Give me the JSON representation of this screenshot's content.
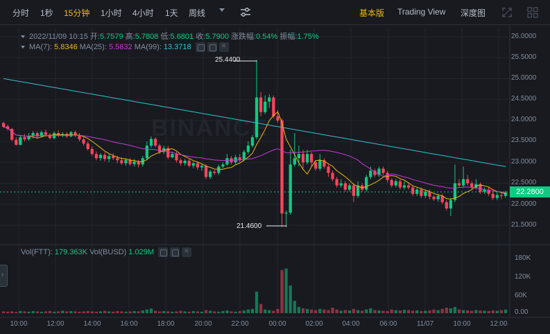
{
  "toolbar": {
    "timeframes": [
      "分时",
      "1秒",
      "15分钟",
      "1小时",
      "4小时",
      "1天",
      "周线"
    ],
    "active_timeframe_index": 2,
    "views": [
      "基本版",
      "Trading View",
      "深度图"
    ],
    "active_view_index": 0
  },
  "ohlc": {
    "datetime": "2022/11/09 10:15",
    "open_label": "开:",
    "open": "5.7579",
    "high_label": "高:",
    "high": "5.7808",
    "low_label": "低:",
    "low": "5.6801",
    "close_label": "收:",
    "close": "5.7900",
    "change_label": "涨跌幅:",
    "change": "0.54%",
    "amplitude_label": "振幅:",
    "amplitude": "1.75%"
  },
  "ma": {
    "ma7_label": "MA(7):",
    "ma7": "5.8346",
    "ma25_label": "MA(25):",
    "ma25": "5.5832",
    "ma99_label": "MA(99):",
    "ma99": "13.3718"
  },
  "vol": {
    "ftt_label": "Vol(FTT):",
    "ftt": "179.363K",
    "busd_label": "Vol(BUSD)",
    "busd": "1.029M"
  },
  "price_axis": [
    "26.0000",
    "25.5000",
    "25.0000",
    "24.5000",
    "24.0000",
    "23.5000",
    "23.0000",
    "22.5000",
    "22.0000",
    "21.5000"
  ],
  "current_price": "22.2800",
  "high_marker": "25.4400",
  "low_marker": "21.4600",
  "volume_axis": [
    "180K",
    "120K",
    "60K",
    "0.00"
  ],
  "time_axis": [
    "10:00",
    "12:00",
    "14:00",
    "16:00",
    "18:00",
    "20:00",
    "22:00",
    "00:00",
    "02:00",
    "04:00",
    "06:00",
    "11/07",
    "10:00",
    "12:00"
  ],
  "watermark": "BINANCE",
  "colors": {
    "up": "#0ecb81",
    "down": "#f6465d",
    "ma7": "#f0b90b",
    "ma25": "#c73bd6",
    "ma99": "#33c2c9",
    "accent": "#f0b90b"
  },
  "chart_data": {
    "type": "candlestick",
    "ylim": [
      21.3,
      26.2
    ],
    "volume_ylim": [
      0,
      200
    ],
    "candles": [
      [
        23.94,
        23.85,
        23.97,
        23.82
      ],
      [
        23.86,
        23.8,
        23.9,
        23.76
      ],
      [
        23.8,
        23.54,
        23.82,
        23.5
      ],
      [
        23.54,
        23.42,
        23.6,
        23.4
      ],
      [
        23.42,
        23.6,
        23.65,
        23.4
      ],
      [
        23.6,
        23.55,
        23.68,
        23.5
      ],
      [
        23.55,
        23.63,
        23.7,
        23.52
      ],
      [
        23.63,
        23.7,
        23.75,
        23.58
      ],
      [
        23.7,
        23.62,
        23.74,
        23.58
      ],
      [
        23.62,
        23.72,
        23.76,
        23.6
      ],
      [
        23.72,
        23.66,
        23.78,
        23.62
      ],
      [
        23.66,
        23.58,
        23.7,
        23.55
      ],
      [
        23.58,
        23.7,
        23.74,
        23.55
      ],
      [
        23.7,
        23.64,
        23.76,
        23.6
      ],
      [
        23.64,
        23.68,
        23.72,
        23.6
      ],
      [
        23.68,
        23.62,
        23.72,
        23.58
      ],
      [
        23.62,
        23.72,
        23.75,
        23.6
      ],
      [
        23.72,
        23.65,
        23.76,
        23.6
      ],
      [
        23.65,
        23.55,
        23.7,
        23.5
      ],
      [
        23.55,
        23.45,
        23.6,
        23.4
      ],
      [
        23.45,
        23.32,
        23.5,
        23.28
      ],
      [
        23.32,
        23.2,
        23.38,
        23.15
      ],
      [
        23.2,
        23.1,
        23.26,
        23.05
      ],
      [
        23.1,
        23.18,
        23.22,
        23.04
      ],
      [
        23.18,
        23.08,
        23.24,
        23.02
      ],
      [
        23.08,
        23.15,
        23.2,
        23.0
      ],
      [
        23.15,
        23.1,
        23.22,
        23.06
      ],
      [
        23.1,
        23.05,
        23.16,
        22.98
      ],
      [
        23.05,
        22.98,
        23.12,
        22.94
      ],
      [
        22.98,
        23.06,
        23.1,
        22.92
      ],
      [
        23.06,
        22.96,
        23.1,
        22.92
      ],
      [
        22.96,
        23.02,
        23.08,
        22.9
      ],
      [
        23.02,
        22.95,
        23.06,
        22.88
      ],
      [
        22.95,
        23.1,
        23.15,
        22.9
      ],
      [
        23.1,
        23.4,
        23.5,
        23.05
      ],
      [
        23.4,
        23.56,
        23.62,
        23.35
      ],
      [
        23.56,
        23.4,
        23.6,
        23.36
      ],
      [
        23.4,
        23.25,
        23.45,
        23.2
      ],
      [
        23.25,
        23.34,
        23.4,
        23.2
      ],
      [
        23.34,
        23.12,
        23.4,
        23.08
      ],
      [
        23.12,
        23.2,
        23.26,
        23.1
      ],
      [
        23.2,
        23.05,
        23.25,
        23.0
      ],
      [
        23.05,
        22.98,
        23.1,
        22.92
      ],
      [
        22.98,
        23.04,
        23.08,
        22.92
      ],
      [
        23.04,
        22.92,
        23.08,
        22.88
      ],
      [
        22.92,
        22.98,
        23.02,
        22.86
      ],
      [
        22.98,
        22.88,
        23.02,
        22.82
      ],
      [
        22.88,
        22.92,
        22.96,
        22.8
      ],
      [
        22.92,
        22.65,
        22.96,
        22.6
      ],
      [
        22.65,
        22.78,
        22.82,
        22.6
      ],
      [
        22.78,
        22.75,
        22.82,
        22.7
      ],
      [
        22.75,
        22.9,
        22.95,
        22.7
      ],
      [
        22.9,
        22.95,
        23.0,
        22.86
      ],
      [
        22.95,
        23.1,
        23.2,
        22.92
      ],
      [
        23.1,
        23.0,
        23.15,
        22.95
      ],
      [
        23.0,
        23.12,
        23.18,
        22.96
      ],
      [
        23.12,
        23.06,
        23.2,
        23.0
      ],
      [
        23.06,
        23.25,
        23.3,
        23.02
      ],
      [
        23.25,
        23.4,
        23.5,
        23.2
      ],
      [
        23.4,
        23.6,
        23.65,
        23.35
      ],
      [
        23.6,
        24.55,
        25.44,
        23.55
      ],
      [
        24.55,
        24.2,
        24.68,
        24.1
      ],
      [
        24.2,
        24.45,
        24.6,
        24.15
      ],
      [
        24.45,
        24.55,
        24.62,
        24.3
      ],
      [
        24.55,
        24.1,
        24.6,
        24.05
      ],
      [
        24.1,
        24.0,
        24.25,
        23.95
      ],
      [
        24.0,
        21.78,
        24.05,
        21.46
      ],
      [
        21.78,
        21.8,
        21.85,
        21.46
      ],
      [
        21.8,
        22.95,
        23.3,
        21.75
      ],
      [
        22.95,
        23.1,
        23.7,
        22.9
      ],
      [
        23.1,
        23.2,
        23.4,
        22.9
      ],
      [
        23.2,
        23.0,
        23.3,
        22.85
      ],
      [
        23.0,
        23.2,
        23.3,
        22.95
      ],
      [
        23.2,
        23.0,
        23.25,
        22.9
      ],
      [
        23.0,
        22.85,
        23.05,
        22.8
      ],
      [
        22.85,
        23.05,
        23.2,
        22.8
      ],
      [
        23.05,
        22.9,
        23.1,
        22.85
      ],
      [
        22.9,
        22.75,
        22.95,
        22.65
      ],
      [
        22.75,
        22.6,
        22.8,
        22.55
      ],
      [
        22.6,
        22.45,
        22.65,
        22.4
      ],
      [
        22.45,
        22.5,
        22.6,
        22.4
      ],
      [
        22.5,
        22.35,
        22.55,
        22.3
      ],
      [
        22.35,
        22.45,
        22.5,
        22.3
      ],
      [
        22.45,
        22.2,
        22.5,
        22.05
      ],
      [
        22.2,
        22.45,
        22.55,
        22.15
      ],
      [
        22.45,
        22.35,
        22.5,
        22.3
      ],
      [
        22.35,
        22.65,
        22.7,
        22.3
      ],
      [
        22.65,
        22.8,
        22.9,
        22.6
      ],
      [
        22.8,
        22.7,
        22.85,
        22.65
      ],
      [
        22.7,
        22.85,
        22.9,
        22.65
      ],
      [
        22.85,
        22.75,
        22.9,
        22.7
      ],
      [
        22.75,
        22.58,
        22.8,
        22.52
      ],
      [
        22.58,
        22.45,
        22.62,
        22.4
      ],
      [
        22.45,
        22.55,
        22.6,
        22.4
      ],
      [
        22.55,
        22.4,
        22.6,
        22.35
      ],
      [
        22.4,
        22.45,
        22.55,
        22.35
      ],
      [
        22.45,
        22.4,
        22.5,
        22.35
      ],
      [
        22.4,
        22.25,
        22.45,
        22.2
      ],
      [
        22.25,
        22.35,
        22.4,
        22.2
      ],
      [
        22.35,
        22.2,
        22.4,
        22.15
      ],
      [
        22.2,
        22.3,
        22.35,
        22.15
      ],
      [
        22.3,
        22.18,
        22.35,
        22.12
      ],
      [
        22.18,
        22.12,
        22.22,
        22.08
      ],
      [
        22.12,
        22.2,
        22.25,
        22.06
      ],
      [
        22.2,
        22.05,
        22.25,
        22.0
      ],
      [
        22.05,
        21.9,
        22.1,
        21.85
      ],
      [
        21.9,
        22.1,
        22.15,
        21.72
      ],
      [
        22.1,
        22.5,
        22.95,
        22.05
      ],
      [
        22.5,
        22.45,
        22.6,
        22.4
      ],
      [
        22.45,
        22.6,
        22.9,
        22.4
      ],
      [
        22.6,
        22.5,
        22.7,
        22.45
      ],
      [
        22.5,
        22.4,
        22.55,
        22.35
      ],
      [
        22.4,
        22.48,
        22.6,
        22.35
      ],
      [
        22.48,
        22.3,
        22.52,
        22.25
      ],
      [
        22.3,
        22.35,
        22.4,
        22.25
      ],
      [
        22.35,
        22.25,
        22.4,
        22.2
      ],
      [
        22.25,
        22.15,
        22.3,
        22.1
      ],
      [
        22.15,
        22.22,
        22.28,
        22.1
      ],
      [
        22.22,
        22.2,
        22.3,
        22.12
      ],
      [
        22.2,
        22.28,
        22.32,
        22.15
      ]
    ],
    "volumes": [
      6,
      5,
      6,
      4,
      7,
      6,
      5,
      7,
      6,
      5,
      6,
      7,
      5,
      6,
      8,
      6,
      7,
      6,
      5,
      6,
      7,
      6,
      5,
      6,
      8,
      6,
      5,
      7,
      6,
      5,
      6,
      7,
      6,
      9,
      12,
      15,
      8,
      6,
      7,
      6,
      5,
      6,
      8,
      6,
      5,
      7,
      6,
      5,
      10,
      8,
      6,
      5,
      7,
      9,
      6,
      5,
      7,
      9,
      12,
      14,
      70,
      30,
      12,
      10,
      8,
      14,
      140,
      145,
      90,
      40,
      20,
      16,
      14,
      12,
      10,
      14,
      12,
      10,
      18,
      12,
      8,
      10,
      9,
      14,
      10,
      8,
      12,
      16,
      10,
      9,
      8,
      7,
      12,
      10,
      9,
      11,
      10,
      8,
      9,
      7,
      8,
      9,
      12,
      10,
      14,
      18,
      16,
      20,
      12,
      10,
      9,
      8,
      10,
      9,
      8,
      7,
      9,
      8,
      10,
      12
    ]
  }
}
